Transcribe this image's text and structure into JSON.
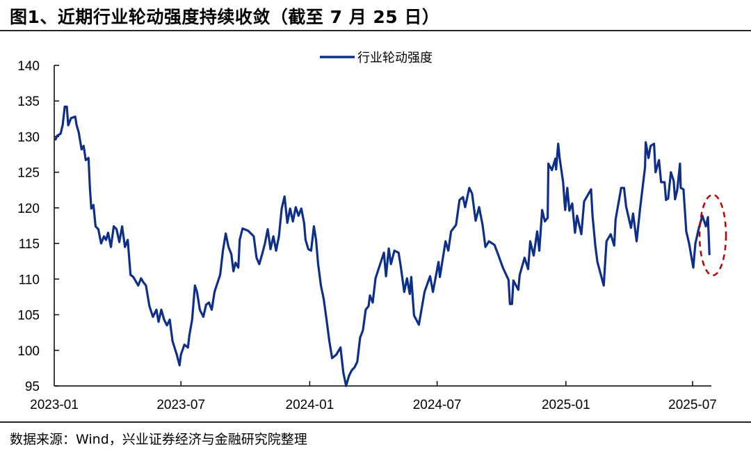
{
  "title": "图1、近期行业轮动强度持续收敛（截至 7 月 25 日）",
  "source": "数据来源：Wind，兴业证券经济与金融研究院整理",
  "colors": {
    "series": "#0d2f8a",
    "annotation": "#c00000"
  },
  "chart_data": {
    "type": "line",
    "title": "",
    "xlabel": "",
    "ylabel": "",
    "ylim": [
      95,
      140
    ],
    "yticks": [
      "140",
      "135",
      "130",
      "125",
      "120",
      "115",
      "110",
      "105",
      "100",
      "95"
    ],
    "xlim": [
      "2023-01-01",
      "2025-07-01"
    ],
    "xticks": [
      "2023-01",
      "2023-07",
      "2024-01",
      "2024-07",
      "2025-01",
      "2025-07"
    ],
    "grid": false,
    "legend": "top-center",
    "annotation": "red dashed ellipse around latest values (July 2025)",
    "series": [
      {
        "name": "行业轮动强度",
        "points": [
          [
            "2023-01-03",
            129.6
          ],
          [
            "2023-01-05",
            130.1
          ],
          [
            "2023-01-10",
            130.4
          ],
          [
            "2023-01-13",
            131.6
          ],
          [
            "2023-01-16",
            134.2
          ],
          [
            "2023-01-19",
            134.2
          ],
          [
            "2023-01-21",
            131.6
          ],
          [
            "2023-01-25",
            132.6
          ],
          [
            "2023-01-31",
            132.8
          ],
          [
            "2023-02-02",
            131.6
          ],
          [
            "2023-02-05",
            130.6
          ],
          [
            "2023-02-09",
            128.2
          ],
          [
            "2023-02-12",
            128.7
          ],
          [
            "2023-02-15",
            126.7
          ],
          [
            "2023-02-19",
            127.0
          ],
          [
            "2023-02-21",
            122.8
          ],
          [
            "2023-02-23",
            119.9
          ],
          [
            "2023-02-26",
            120.4
          ],
          [
            "2023-03-01",
            117.4
          ],
          [
            "2023-03-05",
            117.0
          ],
          [
            "2023-03-09",
            115.0
          ],
          [
            "2023-03-13",
            116.0
          ],
          [
            "2023-03-16",
            115.5
          ],
          [
            "2023-03-19",
            116.5
          ],
          [
            "2023-03-23",
            114.5
          ],
          [
            "2023-03-27",
            117.4
          ],
          [
            "2023-03-31",
            117.0
          ],
          [
            "2023-04-04",
            115.2
          ],
          [
            "2023-04-08",
            117.4
          ],
          [
            "2023-04-12",
            114.5
          ],
          [
            "2023-04-16",
            115.5
          ],
          [
            "2023-04-20",
            110.6
          ],
          [
            "2023-04-24",
            110.3
          ],
          [
            "2023-05-01",
            109.1
          ],
          [
            "2023-05-05",
            110.1
          ],
          [
            "2023-05-08",
            109.6
          ],
          [
            "2023-05-12",
            109.1
          ],
          [
            "2023-05-17",
            106.2
          ],
          [
            "2023-05-22",
            104.7
          ],
          [
            "2023-05-27",
            105.7
          ],
          [
            "2023-05-30",
            104.0
          ],
          [
            "2023-06-03",
            105.7
          ],
          [
            "2023-06-07",
            104.3
          ],
          [
            "2023-06-11",
            103.5
          ],
          [
            "2023-06-15",
            104.3
          ],
          [
            "2023-06-19",
            101.3
          ],
          [
            "2023-06-25",
            99.4
          ],
          [
            "2023-06-29",
            97.9
          ],
          [
            "2023-07-01",
            99.4
          ],
          [
            "2023-07-06",
            100.8
          ],
          [
            "2023-07-11",
            100.4
          ],
          [
            "2023-07-13",
            102.1
          ],
          [
            "2023-07-17",
            104.3
          ],
          [
            "2023-07-21",
            109.1
          ],
          [
            "2023-07-24",
            108.2
          ],
          [
            "2023-07-28",
            105.7
          ],
          [
            "2023-08-02",
            104.7
          ],
          [
            "2023-08-06",
            106.4
          ],
          [
            "2023-08-10",
            106.7
          ],
          [
            "2023-08-14",
            105.7
          ],
          [
            "2023-08-18",
            108.2
          ],
          [
            "2023-08-22",
            109.4
          ],
          [
            "2023-08-26",
            110.6
          ],
          [
            "2023-08-30",
            114.0
          ],
          [
            "2023-09-03",
            116.4
          ],
          [
            "2023-09-07",
            114.5
          ],
          [
            "2023-09-11",
            113.5
          ],
          [
            "2023-09-14",
            111.1
          ],
          [
            "2023-09-17",
            112.3
          ],
          [
            "2023-09-21",
            111.6
          ],
          [
            "2023-09-23",
            115.5
          ],
          [
            "2023-09-27",
            117.1
          ],
          [
            "2023-10-05",
            116.8
          ],
          [
            "2023-10-13",
            116.0
          ],
          [
            "2023-10-17",
            113.0
          ],
          [
            "2023-10-21",
            112.1
          ],
          [
            "2023-10-25",
            113.5
          ],
          [
            "2023-10-29",
            115.0
          ],
          [
            "2023-11-02",
            117.0
          ],
          [
            "2023-11-06",
            114.2
          ],
          [
            "2023-11-10",
            116.0
          ],
          [
            "2023-11-14",
            114.0
          ],
          [
            "2023-11-18",
            116.0
          ],
          [
            "2023-11-22",
            119.9
          ],
          [
            "2023-11-26",
            121.6
          ],
          [
            "2023-11-30",
            117.9
          ],
          [
            "2023-12-04",
            119.9
          ],
          [
            "2023-12-08",
            118.1
          ],
          [
            "2023-12-12",
            120.1
          ],
          [
            "2023-12-16",
            118.9
          ],
          [
            "2023-12-20",
            119.9
          ],
          [
            "2023-12-24",
            117.9
          ],
          [
            "2023-12-26",
            115.5
          ],
          [
            "2023-12-30",
            114.2
          ],
          [
            "2024-01-03",
            114.0
          ],
          [
            "2024-01-07",
            117.4
          ],
          [
            "2024-01-10",
            115.5
          ],
          [
            "2024-01-13",
            112.1
          ],
          [
            "2024-01-17",
            109.1
          ],
          [
            "2024-01-21",
            107.2
          ],
          [
            "2024-01-25",
            104.3
          ],
          [
            "2024-01-29",
            101.3
          ],
          [
            "2024-02-02",
            98.9
          ],
          [
            "2024-02-08",
            99.4
          ],
          [
            "2024-02-14",
            100.4
          ],
          [
            "2024-02-18",
            96.9
          ],
          [
            "2024-02-22",
            95.0
          ],
          [
            "2024-02-26",
            96.4
          ],
          [
            "2024-03-01",
            97.2
          ],
          [
            "2024-03-05",
            97.6
          ],
          [
            "2024-03-09",
            98.4
          ],
          [
            "2024-03-13",
            101.8
          ],
          [
            "2024-03-17",
            102.8
          ],
          [
            "2024-03-21",
            105.7
          ],
          [
            "2024-03-25",
            106.2
          ],
          [
            "2024-03-27",
            107.7
          ],
          [
            "2024-03-31",
            106.7
          ],
          [
            "2024-04-04",
            110.1
          ],
          [
            "2024-04-16",
            113.7
          ],
          [
            "2024-04-19",
            110.4
          ],
          [
            "2024-04-23",
            114.3
          ],
          [
            "2024-04-26",
            112.1
          ],
          [
            "2024-05-01",
            114.0
          ],
          [
            "2024-05-07",
            113.7
          ],
          [
            "2024-05-10",
            111.8
          ],
          [
            "2024-05-15",
            108.2
          ],
          [
            "2024-05-19",
            110.1
          ],
          [
            "2024-05-23",
            107.9
          ],
          [
            "2024-05-25",
            110.3
          ],
          [
            "2024-05-29",
            104.9
          ],
          [
            "2024-06-05",
            103.6
          ],
          [
            "2024-06-13",
            108.2
          ],
          [
            "2024-06-21",
            110.4
          ],
          [
            "2024-06-25",
            108.2
          ],
          [
            "2024-07-03",
            112.4
          ],
          [
            "2024-07-05",
            110.3
          ],
          [
            "2024-07-13",
            115.3
          ],
          [
            "2024-07-17",
            114.0
          ],
          [
            "2024-07-21",
            116.7
          ],
          [
            "2024-07-28",
            117.6
          ],
          [
            "2024-08-02",
            121.1
          ],
          [
            "2024-08-07",
            121.5
          ],
          [
            "2024-08-10",
            120.1
          ],
          [
            "2024-08-16",
            122.8
          ],
          [
            "2024-08-20",
            122.0
          ],
          [
            "2024-08-25",
            118.2
          ],
          [
            "2024-08-30",
            120.1
          ],
          [
            "2024-09-04",
            117.6
          ],
          [
            "2024-09-08",
            114.5
          ],
          [
            "2024-09-13",
            115.3
          ],
          [
            "2024-09-21",
            114.8
          ],
          [
            "2024-09-26",
            113.5
          ],
          [
            "2024-10-03",
            111.6
          ],
          [
            "2024-10-11",
            109.9
          ],
          [
            "2024-10-13",
            106.5
          ],
          [
            "2024-10-16",
            106.5
          ],
          [
            "2024-10-18",
            109.8
          ],
          [
            "2024-10-25",
            108.5
          ],
          [
            "2024-10-27",
            110.6
          ],
          [
            "2024-11-03",
            113.0
          ],
          [
            "2024-11-08",
            111.4
          ],
          [
            "2024-11-11",
            115.3
          ],
          [
            "2024-11-16",
            113.3
          ],
          [
            "2024-11-21",
            116.7
          ],
          [
            "2024-11-24",
            114.0
          ],
          [
            "2024-11-28",
            119.7
          ],
          [
            "2024-12-02",
            118.1
          ],
          [
            "2024-12-06",
            118.6
          ],
          [
            "2024-12-07",
            126.2
          ],
          [
            "2024-12-12",
            125.3
          ],
          [
            "2024-12-17",
            126.9
          ],
          [
            "2024-12-18",
            125.4
          ],
          [
            "2024-12-21",
            129.0
          ],
          [
            "2024-12-23",
            127.0
          ],
          [
            "2024-12-28",
            123.6
          ],
          [
            "2024-12-30",
            120.9
          ],
          [
            "2024-12-31",
            119.7
          ],
          [
            "2025-01-03",
            122.8
          ],
          [
            "2025-01-06",
            119.6
          ],
          [
            "2025-01-10",
            120.6
          ],
          [
            "2025-01-14",
            116.5
          ],
          [
            "2025-01-17",
            118.9
          ],
          [
            "2025-01-23",
            116.3
          ],
          [
            "2025-01-27",
            120.9
          ],
          [
            "2025-02-06",
            122.6
          ],
          [
            "2025-02-08",
            118.9
          ],
          [
            "2025-02-12",
            114.7
          ],
          [
            "2025-02-15",
            112.4
          ],
          [
            "2025-02-24",
            109.1
          ],
          [
            "2025-02-28",
            115.3
          ],
          [
            "2025-03-06",
            116.3
          ],
          [
            "2025-03-11",
            114.7
          ],
          [
            "2025-03-13",
            118.4
          ],
          [
            "2025-03-21",
            122.8
          ],
          [
            "2025-03-25",
            122.8
          ],
          [
            "2025-03-28",
            120.2
          ],
          [
            "2025-04-04",
            117.2
          ],
          [
            "2025-04-07",
            119.2
          ],
          [
            "2025-04-12",
            115.3
          ],
          [
            "2025-04-17",
            119.9
          ],
          [
            "2025-04-24",
            125.7
          ],
          [
            "2025-04-25",
            129.2
          ],
          [
            "2025-04-29",
            127.0
          ],
          [
            "2025-05-02",
            128.7
          ],
          [
            "2025-05-07",
            129.0
          ],
          [
            "2025-05-09",
            125.0
          ],
          [
            "2025-05-14",
            126.7
          ],
          [
            "2025-05-17",
            123.6
          ],
          [
            "2025-05-22",
            123.6
          ],
          [
            "2025-05-24",
            121.1
          ],
          [
            "2025-05-27",
            121.3
          ],
          [
            "2025-05-31",
            125.0
          ],
          [
            "2025-06-04",
            123.8
          ],
          [
            "2025-06-06",
            121.2
          ],
          [
            "2025-06-09",
            122.5
          ],
          [
            "2025-06-13",
            126.2
          ],
          [
            "2025-06-14",
            122.8
          ],
          [
            "2025-06-18",
            122.6
          ],
          [
            "2025-06-22",
            116.7
          ],
          [
            "2025-06-26",
            115.0
          ],
          [
            "2025-07-02",
            111.6
          ],
          [
            "2025-07-05",
            115.0
          ],
          [
            "2025-07-10",
            117.2
          ],
          [
            "2025-07-15",
            118.9
          ],
          [
            "2025-07-20",
            117.4
          ],
          [
            "2025-07-23",
            118.7
          ],
          [
            "2025-07-25",
            113.5
          ]
        ]
      }
    ]
  }
}
